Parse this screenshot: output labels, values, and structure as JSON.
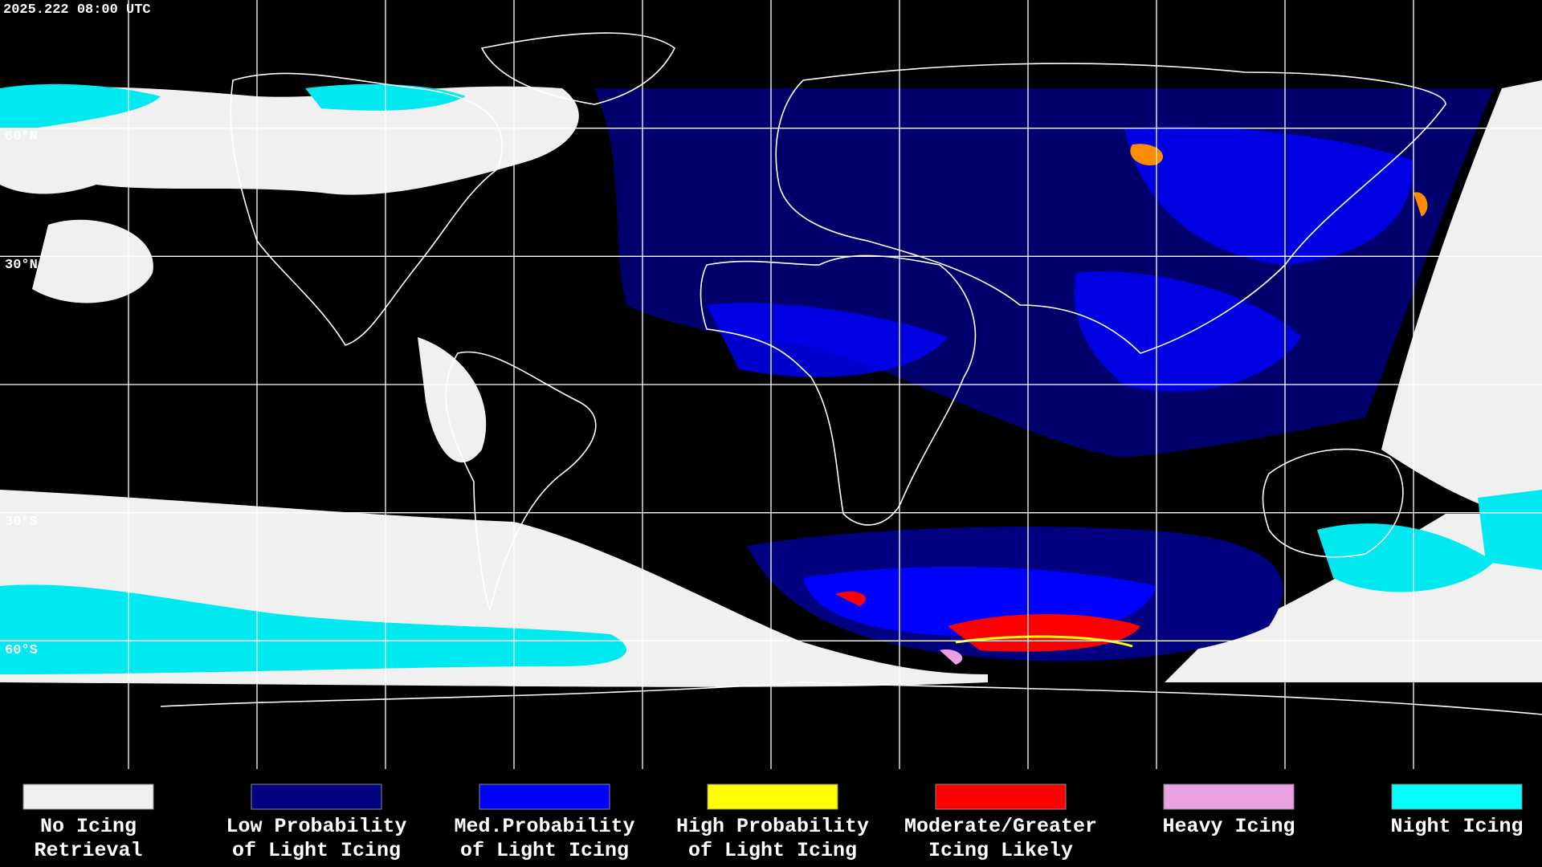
{
  "timestamp": "2025.222 08:00 UTC",
  "latitude_labels": [
    "60°N",
    "30°N",
    "30°S",
    "60°S"
  ],
  "legend": [
    {
      "label": [
        "No Icing",
        "Retrieval"
      ],
      "color": "#f0f0f0"
    },
    {
      "label": [
        "Low Probability",
        "of Light Icing"
      ],
      "color": "#000080"
    },
    {
      "label": [
        "Med.Probability",
        "of Light Icing"
      ],
      "color": "#0000ff"
    },
    {
      "label": [
        "High Probability",
        "of Light Icing"
      ],
      "color": "#ffff00"
    },
    {
      "label": [
        "Moderate/Greater",
        "Icing Likely"
      ],
      "color": "#ff0000"
    },
    {
      "label": [
        "Heavy Icing"
      ],
      "color": "#e8a0e0"
    },
    {
      "label": [
        "Night Icing"
      ],
      "color": "#00ffff"
    }
  ]
}
